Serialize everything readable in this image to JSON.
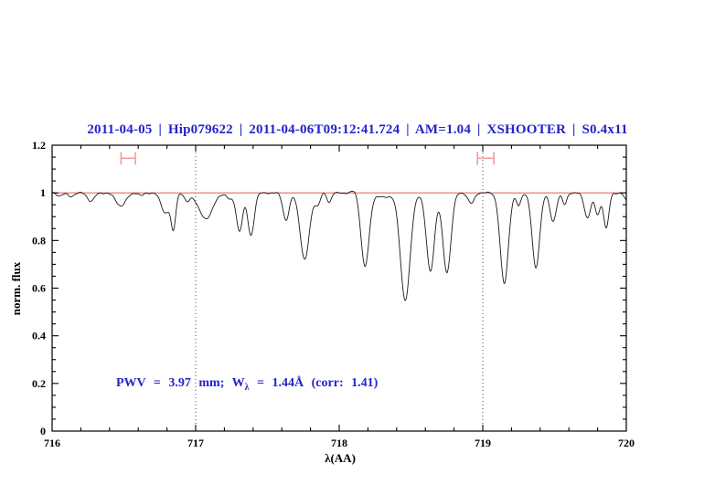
{
  "header": {
    "title": "2011-04-05 | Hip079622 | 2011-04-06T09:12:41.724 | AM=1.04 | XSHOOTER | S0.4x11"
  },
  "annotation": {
    "pre": "PWV = 3.97 mm; W",
    "sub": "λ",
    "post": " = 1.44Å (corr: 1.41)"
  },
  "colors": {
    "title_blue": "#2323cc",
    "annotation_blue": "#2323cc",
    "continuum_red": "#ea6a6a",
    "marker_red": "#f29e9e",
    "spectrum_black": "#1a1a1a",
    "axis_black": "#000000",
    "dotted_gray": "#444444"
  },
  "chart_data": {
    "type": "line",
    "title": "2011-04-05 | Hip079622 | 2011-04-06T09:12:41.724 | AM=1.04 | XSHOOTER | S0.4x11",
    "xlabel": "λ(AA)",
    "ylabel": "norm. flux",
    "xlim": [
      716,
      720
    ],
    "ylim": [
      0,
      1.2
    ],
    "x_major_ticks": [
      716,
      717,
      718,
      719,
      720
    ],
    "x_tick_labels": [
      "716",
      "717",
      "718",
      "719",
      "720"
    ],
    "x_minor_step": 0.2,
    "y_major_ticks": [
      0,
      0.2,
      0.4,
      0.6,
      0.8,
      1,
      1.2
    ],
    "y_tick_labels": [
      "0",
      "0.2",
      "0.4",
      "0.6",
      "0.8",
      "1",
      "1.2"
    ],
    "y_minor_step": 0.05,
    "grid": "off",
    "legend": "none",
    "continuum_level": 1.0,
    "dotted_vlines": [
      717,
      719
    ],
    "measurement_markers": [
      {
        "center": 716.53,
        "half_width": 0.05,
        "flux_level": 1.145
      },
      {
        "center": 719.02,
        "half_width": 0.057,
        "flux_level": 1.145
      }
    ],
    "noise_amplitude": 0.004,
    "spectrum_model": "flux(lambda) = continuum - sum depth*exp(-(lambda-center)^2/(2*sigma^2))",
    "absorption_lines": [
      {
        "center": 716.05,
        "depth": 0.012,
        "sigma": 0.02
      },
      {
        "center": 716.13,
        "depth": 0.015,
        "sigma": 0.02
      },
      {
        "center": 716.27,
        "depth": 0.035,
        "sigma": 0.025
      },
      {
        "center": 716.48,
        "depth": 0.055,
        "sigma": 0.035
      },
      {
        "center": 716.62,
        "depth": 0.012,
        "sigma": 0.015
      },
      {
        "center": 716.79,
        "depth": 0.085,
        "sigma": 0.03
      },
      {
        "center": 716.845,
        "depth": 0.145,
        "sigma": 0.016
      },
      {
        "center": 716.94,
        "depth": 0.035,
        "sigma": 0.018
      },
      {
        "center": 717.07,
        "depth": 0.11,
        "sigma": 0.048
      },
      {
        "center": 717.24,
        "depth": 0.025,
        "sigma": 0.02
      },
      {
        "center": 717.305,
        "depth": 0.16,
        "sigma": 0.022
      },
      {
        "center": 717.385,
        "depth": 0.18,
        "sigma": 0.022
      },
      {
        "center": 717.63,
        "depth": 0.115,
        "sigma": 0.022
      },
      {
        "center": 717.76,
        "depth": 0.28,
        "sigma": 0.032
      },
      {
        "center": 717.85,
        "depth": 0.05,
        "sigma": 0.018
      },
      {
        "center": 717.93,
        "depth": 0.04,
        "sigma": 0.015
      },
      {
        "center": 718.11,
        "depth": -0.012,
        "sigma": 0.02
      },
      {
        "center": 718.18,
        "depth": 0.31,
        "sigma": 0.028
      },
      {
        "center": 718.31,
        "depth": 0.018,
        "sigma": 0.05
      },
      {
        "center": 718.46,
        "depth": 0.45,
        "sigma": 0.034
      },
      {
        "center": 718.635,
        "depth": 0.33,
        "sigma": 0.028
      },
      {
        "center": 718.75,
        "depth": 0.335,
        "sigma": 0.028
      },
      {
        "center": 718.92,
        "depth": 0.045,
        "sigma": 0.022
      },
      {
        "center": 719.15,
        "depth": 0.38,
        "sigma": 0.028
      },
      {
        "center": 719.25,
        "depth": 0.055,
        "sigma": 0.016
      },
      {
        "center": 719.37,
        "depth": 0.315,
        "sigma": 0.026
      },
      {
        "center": 719.49,
        "depth": 0.12,
        "sigma": 0.022
      },
      {
        "center": 719.57,
        "depth": 0.05,
        "sigma": 0.015
      },
      {
        "center": 719.73,
        "depth": 0.105,
        "sigma": 0.022
      },
      {
        "center": 719.8,
        "depth": 0.09,
        "sigma": 0.018
      },
      {
        "center": 719.86,
        "depth": 0.15,
        "sigma": 0.018
      },
      {
        "center": 720.02,
        "depth": 0.045,
        "sigma": 0.025
      }
    ]
  }
}
